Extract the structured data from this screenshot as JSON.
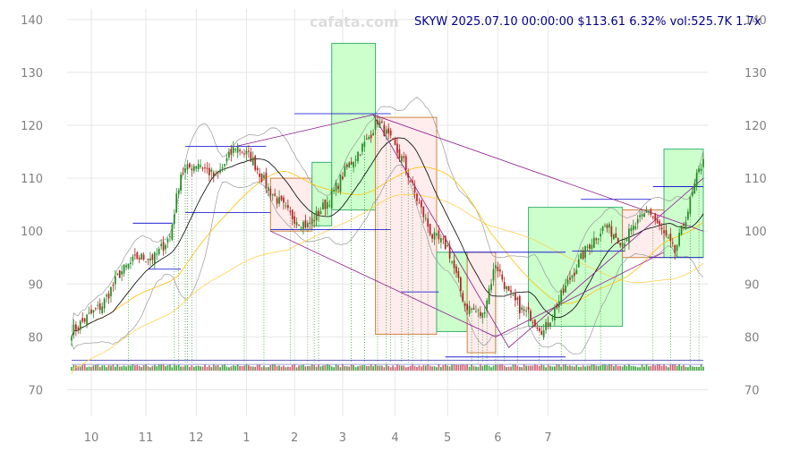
{
  "watermark": "cafata.com",
  "header": {
    "ticker": "SKYW",
    "datetime": "2025.07.10 00:00:00",
    "price": "$113.61",
    "change": "6.32%",
    "volume": "vol:525.7K",
    "multiplier": "1.7x",
    "text": "SKYW 2025.07.10 00:00:00 $113.61 6.32% vol:525.7K 1.7x"
  },
  "colors": {
    "up": "#228B22",
    "down": "#B22222",
    "grid": "#e6e6e6",
    "box_up_fill": "#ccffcc",
    "box_up_edge": "#3cb371",
    "box_down_fill": "#ffecec",
    "box_down_edge": "#cd853f",
    "ma_fast": "#000000",
    "ma_mid": "#ffc107",
    "ma_slow": "#ffd24d",
    "band": "#999999",
    "trend": "#8b1a8b",
    "level": "#0000cd",
    "event": "#228B22"
  },
  "chart_data": {
    "type": "candlestick",
    "title": "SKYW 2025.07.10 00:00:00 $113.61 6.32% vol:525.7K 1.7x",
    "xlabel": "",
    "ylabel": "",
    "ylim": [
      65,
      142
    ],
    "yticks": [
      70,
      80,
      90,
      100,
      110,
      120,
      130,
      140
    ],
    "xticks": [
      "10",
      "11",
      "12",
      "1",
      "2",
      "3",
      "4",
      "5",
      "6",
      "7"
    ],
    "grid": true,
    "anchor_closes": [
      [
        0,
        81
      ],
      [
        8,
        84
      ],
      [
        14,
        86
      ],
      [
        22,
        92
      ],
      [
        30,
        95
      ],
      [
        38,
        95
      ],
      [
        45,
        99
      ],
      [
        50,
        111
      ],
      [
        58,
        113
      ],
      [
        66,
        110
      ],
      [
        75,
        116
      ],
      [
        82,
        114
      ],
      [
        90,
        108
      ],
      [
        100,
        103
      ],
      [
        108,
        101
      ],
      [
        118,
        106
      ],
      [
        126,
        112
      ],
      [
        135,
        117
      ],
      [
        140,
        121
      ],
      [
        146,
        117
      ],
      [
        152,
        113
      ],
      [
        158,
        106
      ],
      [
        165,
        99
      ],
      [
        172,
        97
      ],
      [
        180,
        86
      ],
      [
        188,
        84
      ],
      [
        194,
        94
      ],
      [
        200,
        88
      ],
      [
        206,
        85
      ],
      [
        210,
        84
      ],
      [
        216,
        81
      ],
      [
        222,
        86
      ],
      [
        228,
        91
      ],
      [
        236,
        97
      ],
      [
        244,
        101
      ],
      [
        252,
        98
      ],
      [
        258,
        101
      ],
      [
        264,
        104
      ],
      [
        270,
        100
      ],
      [
        276,
        96
      ],
      [
        282,
        104
      ],
      [
        286,
        110
      ],
      [
        289,
        113.61
      ]
    ],
    "boxes": [
      {
        "from": 91,
        "to": 110,
        "low": 100,
        "high": 110,
        "kind": "down"
      },
      {
        "from": 110,
        "to": 119,
        "low": 101,
        "high": 113,
        "kind": "up"
      },
      {
        "from": 119,
        "to": 139,
        "low": 104,
        "high": 135.5,
        "kind": "up"
      },
      {
        "from": 139,
        "to": 167,
        "low": 80.5,
        "high": 121.5,
        "kind": "down"
      },
      {
        "from": 167,
        "to": 181,
        "low": 81,
        "high": 96,
        "kind": "up"
      },
      {
        "from": 181,
        "to": 194,
        "low": 77,
        "high": 96,
        "kind": "down"
      },
      {
        "from": 209,
        "to": 252,
        "low": 82,
        "high": 104.5,
        "kind": "up"
      },
      {
        "from": 252,
        "to": 271,
        "low": 95,
        "high": 104,
        "kind": "down"
      },
      {
        "from": 271,
        "to": 289,
        "low": 95,
        "high": 115.5,
        "kind": "up"
      }
    ],
    "trend_lines": [
      [
        [
          75,
          116
        ],
        [
          138,
          122
        ],
        [
          289,
          100
        ]
      ],
      [
        [
          91,
          100
        ],
        [
          194,
          80
        ],
        [
          271,
          96
        ]
      ],
      [
        [
          138,
          122
        ],
        [
          200,
          78
        ],
        [
          289,
          110
        ]
      ]
    ],
    "levels": [
      {
        "price": 101.5,
        "from": 28,
        "to": 46
      },
      {
        "price": 92.8,
        "from": 35,
        "to": 50
      },
      {
        "price": 116,
        "from": 52,
        "to": 89
      },
      {
        "price": 103.5,
        "from": 52,
        "to": 91
      },
      {
        "price": 100.3,
        "from": 91,
        "to": 146
      },
      {
        "price": 122.2,
        "from": 102,
        "to": 146
      },
      {
        "price": 88.5,
        "from": 151,
        "to": 168
      },
      {
        "price": 96,
        "from": 173,
        "to": 226
      },
      {
        "price": 76.2,
        "from": 171,
        "to": 226
      },
      {
        "price": 96.2,
        "from": 229,
        "to": 253
      },
      {
        "price": 106,
        "from": 233,
        "to": 265
      },
      {
        "price": 108.4,
        "from": 266,
        "to": 289
      },
      {
        "price": 95,
        "from": 264,
        "to": 289
      }
    ],
    "event_days": [
      26,
      47,
      49,
      52,
      53,
      55,
      79,
      88,
      100,
      108,
      111,
      113,
      128,
      134,
      140,
      144,
      146,
      151,
      154,
      156,
      160,
      163,
      183,
      186,
      188,
      190,
      194,
      198,
      204,
      214,
      224,
      235,
      242,
      266,
      274,
      283,
      287
    ]
  }
}
